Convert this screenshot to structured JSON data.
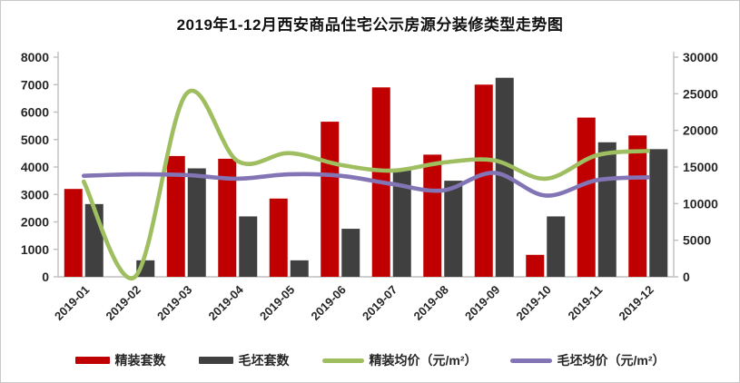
{
  "title": "2019年1-12月西安商品住宅公示房源分装修类型走势图",
  "colors": {
    "background": "#ffffff",
    "border": "#c8c8c8",
    "axis_line": "#bfbfbf",
    "axis_text": "#262626"
  },
  "chart_data": {
    "type": "bar+line combo",
    "title": "2019年1-12月西安商品住宅公示房源分装修类型走势图",
    "categories": [
      "2019-01",
      "2019-02",
      "2019-03",
      "2019-04",
      "2019-05",
      "2019-06",
      "2019-07",
      "2019-08",
      "2019-09",
      "2019-10",
      "2019-11",
      "2019-12"
    ],
    "series": [
      {
        "name": "精装套数",
        "type": "bar",
        "axis": "left",
        "color": "#c00000",
        "values": [
          3200,
          0,
          4400,
          4300,
          2850,
          5650,
          6900,
          4450,
          7000,
          800,
          5800,
          5150
        ]
      },
      {
        "name": "毛坯套数",
        "type": "bar",
        "axis": "left",
        "color": "#404040",
        "values": [
          2650,
          600,
          3950,
          2200,
          600,
          1750,
          3900,
          3500,
          7250,
          2200,
          4900,
          4650
        ]
      },
      {
        "name": "精装均价（元/m²）",
        "type": "line",
        "axis": "right",
        "color": "#9ebe5f",
        "values": [
          13000,
          0,
          25000,
          15800,
          16900,
          15300,
          14500,
          15600,
          15900,
          13400,
          16600,
          17200
        ]
      },
      {
        "name": "毛坯均价（元/m²）",
        "type": "line",
        "axis": "right",
        "color": "#8374b5",
        "values": [
          13800,
          14000,
          13900,
          13400,
          14000,
          13800,
          12700,
          11800,
          14200,
          11100,
          13200,
          13600
        ]
      }
    ],
    "left_axis": {
      "min": 0,
      "max": 8000,
      "step": 1000,
      "ticks": [
        "0",
        "1000",
        "2000",
        "3000",
        "4000",
        "5000",
        "6000",
        "7000",
        "8000"
      ]
    },
    "right_axis": {
      "min": 0,
      "max": 30000,
      "step": 5000,
      "ticks": [
        "0",
        "5000",
        "10000",
        "15000",
        "20000",
        "25000",
        "30000"
      ]
    },
    "legend_position": "bottom",
    "grid": false
  }
}
